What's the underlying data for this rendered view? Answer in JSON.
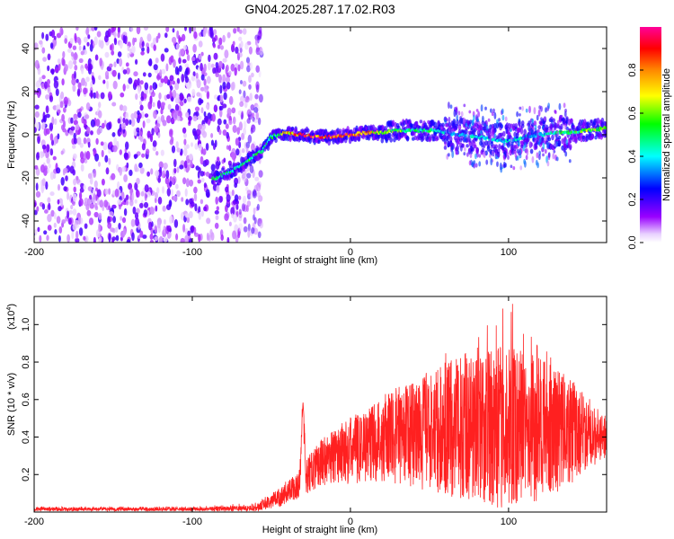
{
  "figure": {
    "title": "GN04.2025.287.17.02.R03"
  },
  "chart_data": [
    {
      "type": "heatmap",
      "title": "GN04.2025.287.17.02.R03",
      "xlabel": "Height of straight line (km)",
      "ylabel": "Frequency (Hz)",
      "xlim": [
        -200,
        162
      ],
      "ylim": [
        -50,
        50
      ],
      "xticks": [
        -200,
        -100,
        0,
        100
      ],
      "yticks": [
        -40,
        -20,
        0,
        20,
        40
      ],
      "colorbar": {
        "label": "Normalized spectral amplitude",
        "range": [
          0,
          1
        ],
        "ticks": [
          "0.0",
          "0.2",
          "0.4",
          "0.6",
          "0.8"
        ],
        "colormap": [
          "#ffffff",
          "#9900ff",
          "#0000ff",
          "#00ffff",
          "#00ff00",
          "#ffff00",
          "#ff8800",
          "#ff0000",
          "#ff0099"
        ]
      },
      "noise_region": {
        "x_range": [
          -200,
          -60
        ],
        "freq_range": [
          -50,
          50
        ],
        "amplitude": [
          0.0,
          0.2
        ]
      },
      "signal_ridge": {
        "x": [
          -85,
          -75,
          -65,
          -55,
          -50,
          -45,
          -40,
          -30,
          -20,
          -10,
          0,
          10,
          20,
          30,
          40,
          50,
          60,
          70,
          80,
          90,
          100,
          110,
          120,
          130,
          140,
          150,
          162
        ],
        "frequency": [
          -20,
          -17,
          -12,
          -7,
          -1,
          0,
          1,
          0,
          -1,
          -1,
          0,
          1,
          1,
          2,
          2,
          2,
          1,
          0,
          -1,
          -2,
          -3,
          -1,
          0,
          1,
          1,
          2,
          3
        ],
        "amplitude": [
          0.5,
          0.5,
          0.5,
          0.5,
          0.5,
          0.5,
          0.8,
          0.9,
          0.9,
          0.9,
          0.9,
          0.8,
          0.6,
          0.6,
          0.5,
          0.5,
          0.4,
          0.4,
          0.4,
          0.4,
          0.4,
          0.4,
          0.4,
          0.5,
          0.5,
          0.6,
          0.6
        ]
      }
    },
    {
      "type": "line",
      "xlabel": "Height of straight line (km)",
      "ylabel": "SNR (10 * v/v)",
      "yscale_label": "(x10",
      "yscale_exp": "4",
      "yscale_close": ")",
      "xlim": [
        -200,
        162
      ],
      "ylim": [
        0,
        11500
      ],
      "xticks": [
        -200,
        -100,
        0,
        100
      ],
      "yticks": [
        2000,
        4000,
        6000,
        8000,
        10000
      ],
      "ytick_labels": [
        "0.2",
        "0.4",
        "0.6",
        "0.8",
        "1.0"
      ],
      "series": [
        {
          "color": "#ff0000",
          "x": [
            -200,
            -150,
            -100,
            -60,
            -50,
            -40,
            -32,
            -30,
            -28,
            -20,
            -10,
            0,
            10,
            20,
            30,
            40,
            50,
            60,
            70,
            80,
            90,
            100,
            110,
            120,
            130,
            140,
            150,
            160
          ],
          "y_mean": [
            150,
            150,
            160,
            200,
            600,
            1000,
            1500,
            5900,
            1800,
            2600,
            3000,
            3300,
            3600,
            3900,
            4100,
            4200,
            4300,
            4400,
            4500,
            4500,
            4500,
            4500,
            4500,
            4400,
            4300,
            4300,
            4200,
            4000
          ],
          "y_spread": [
            100,
            100,
            100,
            150,
            400,
            600,
            800,
            900,
            1000,
            1200,
            1500,
            1800,
            2000,
            2300,
            2600,
            3000,
            3200,
            3500,
            3800,
            4000,
            4200,
            4400,
            4200,
            3800,
            3300,
            2800,
            2000,
            1200
          ],
          "y_peak": [
            300,
            300,
            300,
            500,
            1000,
            1700,
            2200,
            5900,
            3000,
            3500,
            4200,
            5000,
            5500,
            6000,
            6500,
            7000,
            7800,
            8500,
            9000,
            9500,
            10500,
            11500,
            10000,
            9000,
            8000,
            7000,
            5500,
            4500
          ]
        }
      ]
    }
  ]
}
